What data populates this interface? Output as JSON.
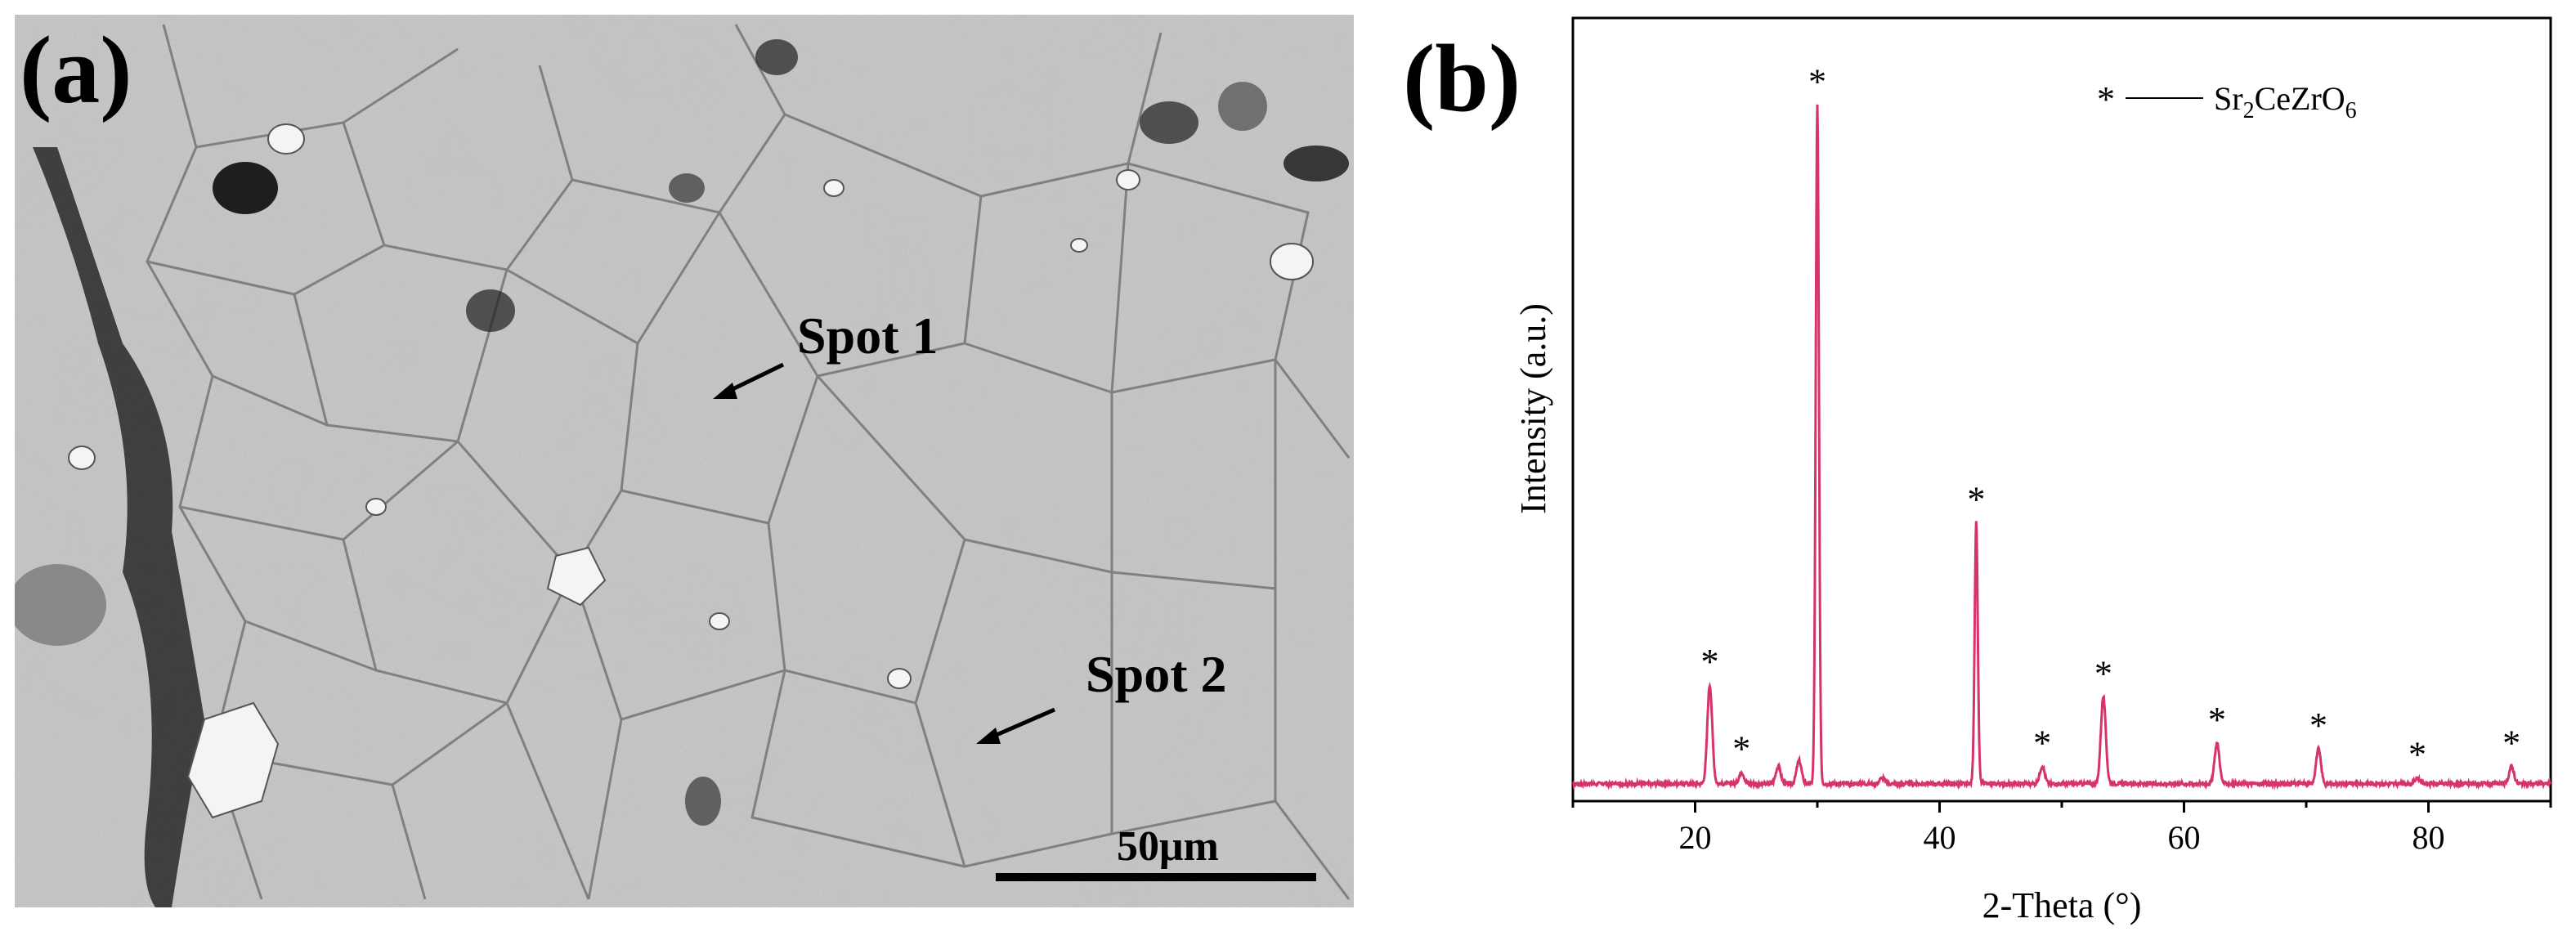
{
  "panel_a": {
    "label": "(a)",
    "spot1_label": "Spot 1",
    "spot2_label": "Spot 2",
    "scale_bar_label": "50μm"
  },
  "panel_b": {
    "label": "(b)",
    "legend": {
      "marker": "*",
      "phase_base": "Sr",
      "phase_sub1": "2",
      "phase_mid": "CeZrO",
      "phase_sub2": "6"
    }
  },
  "chart_data": {
    "type": "line",
    "title": "",
    "xlabel": "2-Theta (°)",
    "ylabel": "Intensity (a.u.)",
    "xlim": [
      10,
      90
    ],
    "ylim": [
      0,
      1.35
    ],
    "x_ticks": [
      20,
      40,
      60,
      80
    ],
    "y_ticks_shown": false,
    "grid": false,
    "legend_position": "top-right",
    "line_color": "#d6336c",
    "series": [
      {
        "name": "Sr2CeZrO6",
        "baseline": 0.03,
        "peaks": [
          {
            "x": 21.2,
            "y": 0.2,
            "starred": true
          },
          {
            "x": 23.8,
            "y": 0.05,
            "starred": true
          },
          {
            "x": 26.8,
            "y": 0.06,
            "starred": false
          },
          {
            "x": 28.5,
            "y": 0.07,
            "starred": false
          },
          {
            "x": 30.0,
            "y": 1.2,
            "starred": true
          },
          {
            "x": 35.3,
            "y": 0.04,
            "starred": false
          },
          {
            "x": 43.0,
            "y": 0.48,
            "starred": true
          },
          {
            "x": 48.4,
            "y": 0.06,
            "starred": true
          },
          {
            "x": 53.4,
            "y": 0.18,
            "starred": true
          },
          {
            "x": 62.7,
            "y": 0.1,
            "starred": true
          },
          {
            "x": 71.0,
            "y": 0.09,
            "starred": true
          },
          {
            "x": 79.1,
            "y": 0.04,
            "starred": true
          },
          {
            "x": 86.8,
            "y": 0.06,
            "starred": true
          }
        ]
      }
    ]
  }
}
